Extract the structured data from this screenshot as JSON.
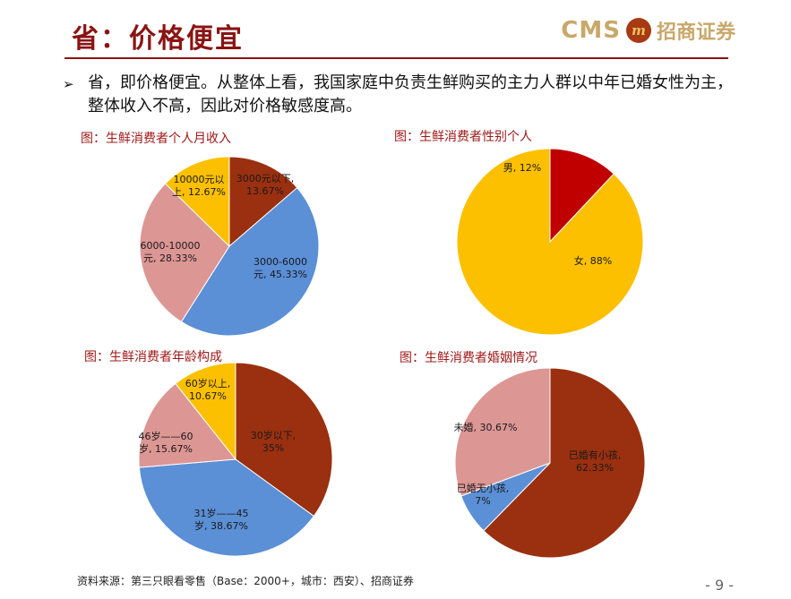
{
  "header": {
    "title": "省：价格便宜",
    "logo_cms": "CMS",
    "logo_mark": "m",
    "logo_cn": "招商证券"
  },
  "bullet": {
    "icon": "➢",
    "text": "省，即价格便宜。从整体上看，我国家庭中负责生鲜购买的主力人群以中年已婚女性为主，整体收入不高，因此对价格敏感度高。"
  },
  "footer": {
    "source": "资料来源：第三只眼看零售（Base：2000+，城市：西安）、招商证券",
    "page": "- 9 -"
  },
  "chart_data": [
    {
      "type": "pie",
      "title": "图：生鲜消费者个人月收入",
      "slices": [
        {
          "label": "3000元以下, 13.67%",
          "lines": [
            "3000元以下,",
            "13.67%"
          ],
          "value": 13.67,
          "color": "#9a300f"
        },
        {
          "label": "3000-6000元, 45.33%",
          "lines": [
            "3000-6000",
            "元, 45.33%"
          ],
          "value": 45.33,
          "color": "#5b8fd6"
        },
        {
          "label": "6000-10000元, 28.33%",
          "lines": [
            "6000-10000",
            "元, 28.33%"
          ],
          "value": 28.33,
          "color": "#dc9694"
        },
        {
          "label": "10000元以上, 12.67%",
          "lines": [
            "10000元以",
            "上, 12.67%"
          ],
          "value": 12.67,
          "color": "#fcc000"
        }
      ]
    },
    {
      "type": "pie",
      "title": "图：生鲜消费者性别个人",
      "slices": [
        {
          "label": "男, 12%",
          "lines": [
            "男, 12%"
          ],
          "value": 12,
          "color": "#c00000"
        },
        {
          "label": "女, 88%",
          "lines": [
            "女, 88%"
          ],
          "value": 88,
          "color": "#fcc000"
        }
      ]
    },
    {
      "type": "pie",
      "title": "图：生鲜消费者年龄构成",
      "slices": [
        {
          "label": "30岁以下, 35%",
          "lines": [
            "30岁以下,",
            "35%"
          ],
          "value": 35,
          "color": "#9a300f"
        },
        {
          "label": "31岁——45岁, 38.67%",
          "lines": [
            "31岁——45",
            "岁, 38.67%"
          ],
          "value": 38.67,
          "color": "#5b8fd6"
        },
        {
          "label": "46岁——60岁, 15.67%",
          "lines": [
            "46岁——60",
            "岁, 15.67%"
          ],
          "value": 15.67,
          "color": "#dc9694"
        },
        {
          "label": "60岁以上, 10.67%",
          "lines": [
            "60岁以上,",
            "10.67%"
          ],
          "value": 10.67,
          "color": "#fcc000"
        }
      ]
    },
    {
      "type": "pie",
      "title": "图：生鲜消费者婚姻情况",
      "slices": [
        {
          "label": "已婚有小孩, 62.33%",
          "lines": [
            "已婚有小孩,",
            "62.33%"
          ],
          "value": 62.33,
          "color": "#9a300f"
        },
        {
          "label": "已婚无小孩, 7%",
          "lines": [
            "已婚无小孩,",
            "7%"
          ],
          "value": 7,
          "color": "#5b8fd6"
        },
        {
          "label": "未婚, 30.67%",
          "lines": [
            "未婚, 30.67%"
          ],
          "value": 30.67,
          "color": "#dc9694"
        }
      ]
    }
  ]
}
